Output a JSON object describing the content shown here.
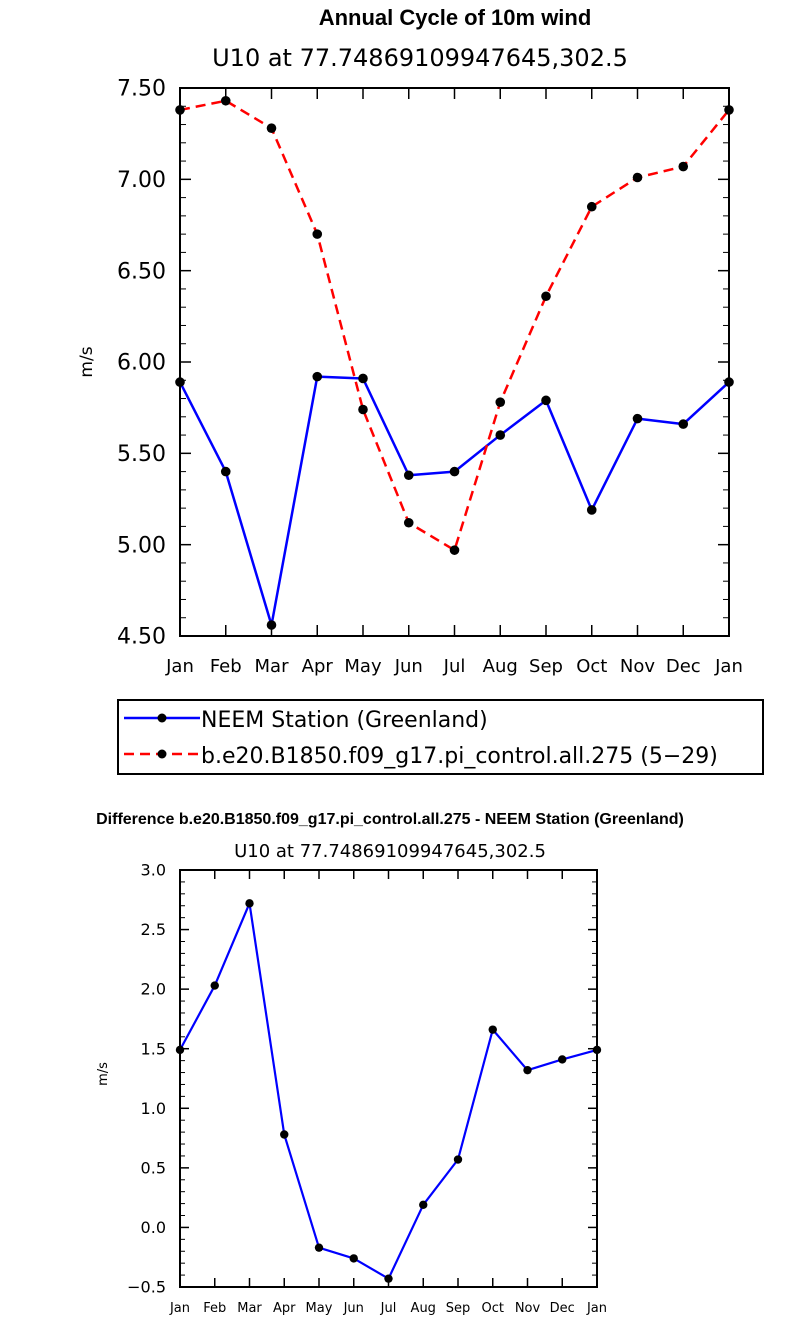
{
  "chart_data": [
    {
      "type": "line",
      "title": "Annual Cycle of 10m wind",
      "subtitle": "U10 at 77.74869109947645,302.5",
      "xlabel": "",
      "ylabel": "m/s",
      "categories": [
        "Jan",
        "Feb",
        "Mar",
        "Apr",
        "May",
        "Jun",
        "Jul",
        "Aug",
        "Sep",
        "Oct",
        "Nov",
        "Dec",
        "Jan"
      ],
      "yticks": [
        "4.50",
        "5.00",
        "5.50",
        "6.00",
        "6.50",
        "7.00",
        "7.50"
      ],
      "ylim": [
        4.5,
        7.5
      ],
      "grid": false,
      "legend": "bottom",
      "series": [
        {
          "name": "NEEM Station (Greenland)",
          "color": "#0000ff",
          "dash": "solid",
          "values": [
            5.89,
            5.4,
            4.56,
            5.92,
            5.91,
            5.38,
            5.4,
            5.6,
            5.79,
            5.19,
            5.69,
            5.66,
            5.89
          ]
        },
        {
          "name": "b.e20.B1850.f09_g17.pi_control.all.275 (5−29)",
          "color": "#ff0000",
          "dash": "dashed",
          "values": [
            7.38,
            7.43,
            7.28,
            6.7,
            5.74,
            5.12,
            4.97,
            5.78,
            6.36,
            6.85,
            7.01,
            7.07,
            7.38
          ]
        }
      ]
    },
    {
      "type": "line",
      "title": "Difference b.e20.B1850.f09_g17.pi_control.all.275 - NEEM Station (Greenland)",
      "subtitle": "U10 at 77.74869109947645,302.5",
      "xlabel": "",
      "ylabel": "m/s",
      "categories": [
        "Jan",
        "Feb",
        "Mar",
        "Apr",
        "May",
        "Jun",
        "Jul",
        "Aug",
        "Sep",
        "Oct",
        "Nov",
        "Dec",
        "Jan"
      ],
      "yticks": [
        "−0.5",
        "0.0",
        "0.5",
        "1.0",
        "1.5",
        "2.0",
        "2.5",
        "3.0"
      ],
      "ylim": [
        -0.5,
        3.0
      ],
      "grid": false,
      "series": [
        {
          "color": "#0000ff",
          "dash": "solid",
          "values": [
            1.49,
            2.03,
            2.72,
            0.78,
            -0.17,
            -0.26,
            -0.43,
            0.19,
            0.57,
            1.66,
            1.32,
            1.41,
            1.49
          ]
        }
      ]
    }
  ]
}
